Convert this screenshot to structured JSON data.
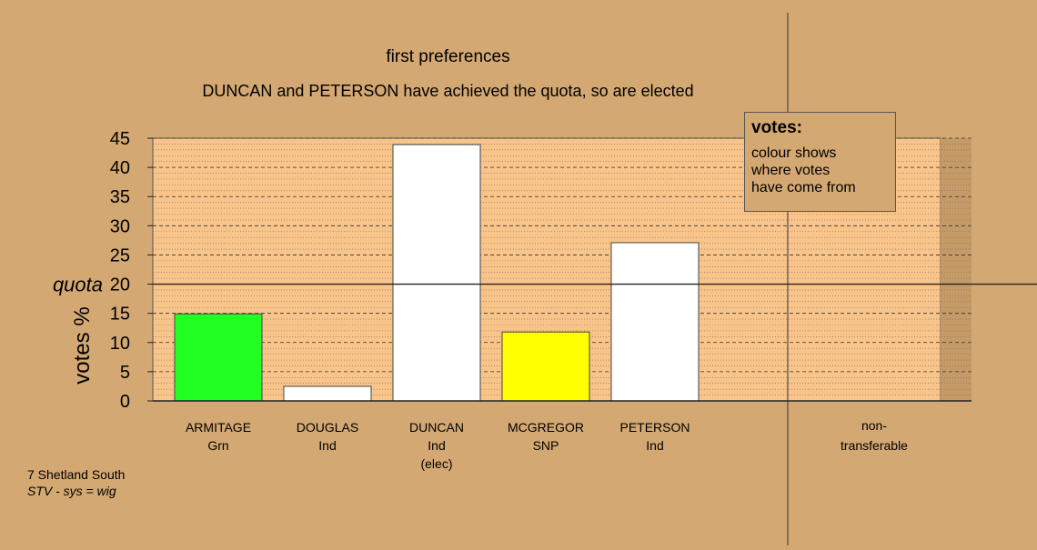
{
  "title_line1": "first preferences",
  "title_line2": "DUNCAN and PETERSON have achieved the quota, so are elected",
  "legend": {
    "title": "votes:",
    "lines": [
      "colour shows",
      "where votes",
      "have come from"
    ]
  },
  "footer": {
    "constituency": "7 Shetland South",
    "system": "STV - sys = wig"
  },
  "chart_data": {
    "type": "bar",
    "ylabel": "votes %",
    "quota_label": "quota",
    "quota": 20,
    "ylim": [
      0,
      45
    ],
    "yticks": [
      0,
      5,
      10,
      15,
      20,
      25,
      30,
      35,
      40,
      45
    ],
    "categories": [
      {
        "name": "ARMITAGE",
        "party": "Grn",
        "note": "",
        "value": 14.9,
        "color": "#22ff22"
      },
      {
        "name": "DOUGLAS",
        "party": "Ind",
        "note": "",
        "value": 2.5,
        "color": "#ffffff"
      },
      {
        "name": "DUNCAN",
        "party": "Ind",
        "note": "(elec)",
        "value": 43.9,
        "color": "#ffffff"
      },
      {
        "name": "MCGREGOR",
        "party": "SNP",
        "note": "",
        "value": 11.8,
        "color": "#ffff00"
      },
      {
        "name": "PETERSON",
        "party": "Ind",
        "note": "",
        "value": 27.1,
        "color": "#ffffff"
      }
    ],
    "nontransferable": {
      "label_line1": "non-",
      "label_line2": "transferable",
      "value": 0
    },
    "colors": {
      "background": "#d4a873",
      "plot_area": "#f8c48a",
      "nontransferable_area": "#c49a66"
    }
  }
}
